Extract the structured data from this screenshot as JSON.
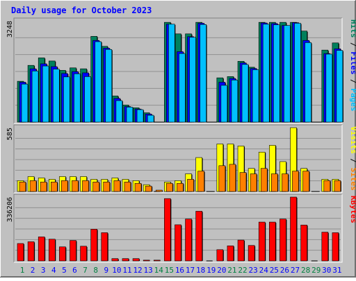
{
  "chart_data": [
    {
      "type": "bar",
      "title": "Daily usage for October 2023",
      "panel": "hits-files-pages",
      "ylabel_parts": [
        "Pages",
        "Files",
        "Hits"
      ],
      "ytick": "3248",
      "ymax": 3248,
      "categories": [
        "1",
        "2",
        "3",
        "4",
        "5",
        "6",
        "7",
        "8",
        "9",
        "10",
        "11",
        "12",
        "13",
        "14",
        "15",
        "16",
        "17",
        "18",
        "19",
        "20",
        "21",
        "22",
        "23",
        "24",
        "25",
        "26",
        "27",
        "28",
        "29",
        "30",
        "31"
      ],
      "weekend_days": [
        "1",
        "7",
        "8",
        "14",
        "15",
        "21",
        "22",
        "28",
        "29"
      ],
      "series": [
        {
          "name": "Hits",
          "color": "#00805c",
          "values": [
            1310,
            1820,
            2060,
            1960,
            1660,
            1740,
            1710,
            2750,
            2430,
            840,
            550,
            460,
            300,
            0,
            3200,
            2830,
            2830,
            3200,
            0,
            1420,
            1460,
            1950,
            1760,
            3200,
            3200,
            3200,
            3200,
            2920,
            0,
            2310,
            2540
          ]
        },
        {
          "name": "Files",
          "color": "#0000ff",
          "values": [
            1280,
            1710,
            1870,
            1780,
            1560,
            1620,
            1580,
            2620,
            2370,
            760,
            500,
            420,
            260,
            0,
            3140,
            2260,
            2740,
            3170,
            0,
            1280,
            1400,
            1900,
            1720,
            3180,
            3160,
            3100,
            3190,
            2620,
            0,
            2200,
            2350
          ]
        },
        {
          "name": "Pages",
          "color": "#00c0ff",
          "values": [
            1220,
            1640,
            1800,
            1700,
            1450,
            1550,
            1460,
            2580,
            2330,
            690,
            480,
            400,
            220,
            0,
            3140,
            2200,
            2720,
            3130,
            0,
            1180,
            1350,
            1850,
            1680,
            3140,
            3120,
            3100,
            3170,
            2550,
            0,
            2180,
            2300
          ]
        }
      ]
    },
    {
      "type": "bar",
      "panel": "visits-sites",
      "ylabel_parts": [
        "Sites",
        "Visits"
      ],
      "ytick": "585",
      "ymax": 585,
      "categories": [
        "1",
        "2",
        "3",
        "4",
        "5",
        "6",
        "7",
        "8",
        "9",
        "10",
        "11",
        "12",
        "13",
        "14",
        "15",
        "16",
        "17",
        "18",
        "19",
        "20",
        "21",
        "22",
        "23",
        "24",
        "25",
        "26",
        "27",
        "28",
        "29",
        "30",
        "31"
      ],
      "series": [
        {
          "name": "Visits",
          "color": "#ffff00",
          "values": [
            128,
            176,
            160,
            144,
            176,
            176,
            176,
            144,
            144,
            160,
            144,
            128,
            80,
            0,
            112,
            128,
            208,
            400,
            0,
            560,
            560,
            536,
            272,
            464,
            544,
            352,
            752,
            272,
            0,
            144,
            144
          ]
        },
        {
          "name": "Sites",
          "color": "#ff8000",
          "values": [
            112,
            128,
            112,
            112,
            128,
            128,
            128,
            112,
            112,
            128,
            112,
            96,
            64,
            16,
            96,
            96,
            144,
            240,
            0,
            304,
            320,
            224,
            208,
            272,
            208,
            208,
            240,
            240,
            0,
            128,
            128
          ]
        }
      ]
    },
    {
      "type": "bar",
      "panel": "kbytes",
      "ylabel_parts": [
        "KBytes"
      ],
      "ytick": "336206",
      "ymax": 336206,
      "categories": [
        "1",
        "2",
        "3",
        "4",
        "5",
        "6",
        "7",
        "8",
        "9",
        "10",
        "11",
        "12",
        "13",
        "14",
        "15",
        "16",
        "17",
        "18",
        "19",
        "20",
        "21",
        "22",
        "23",
        "24",
        "25",
        "26",
        "27",
        "28",
        "29",
        "30",
        "31"
      ],
      "series": [
        {
          "name": "KBytes",
          "color": "#ff0000",
          "values": [
            136000,
            150000,
            188000,
            170000,
            110000,
            160000,
            115000,
            248000,
            221000,
            18000,
            18000,
            18000,
            6000,
            6000,
            488000,
            283000,
            328000,
            389000,
            0,
            88000,
            118000,
            163000,
            121000,
            304000,
            304000,
            328000,
            500000,
            281000,
            0,
            225000,
            221000
          ]
        }
      ]
    }
  ],
  "colors": {
    "background": "#c0c0c0",
    "panel": "#c0c0c0",
    "frame": "#ffffff",
    "title": "#0000ff",
    "weekday_label": "#0000ff",
    "weekend_label": "#008040",
    "separator": "#000000"
  }
}
